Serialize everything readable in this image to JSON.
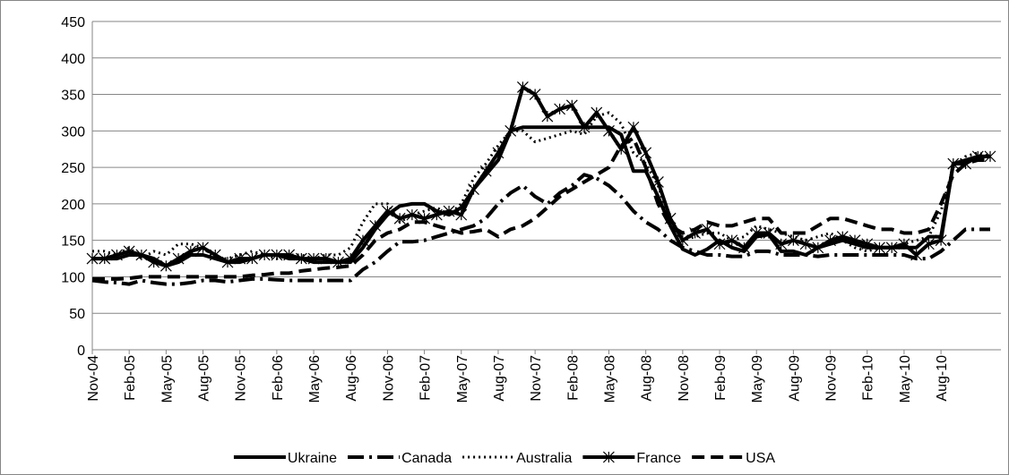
{
  "chart_data": {
    "type": "line",
    "categories": [
      "Nov-04",
      null,
      null,
      "Feb-05",
      null,
      null,
      "May-05",
      null,
      null,
      "Aug-05",
      null,
      null,
      "Nov-05",
      null,
      null,
      "Feb-06",
      null,
      null,
      "May-06",
      null,
      null,
      "Aug-06",
      null,
      null,
      "Nov-06",
      null,
      null,
      "Feb-07",
      null,
      null,
      "May-07",
      null,
      null,
      "Aug-07",
      null,
      null,
      "Nov-07",
      null,
      null,
      "Feb-08",
      null,
      null,
      "May-08",
      null,
      null,
      "Aug-08",
      null,
      null,
      "Nov-08",
      null,
      null,
      "Feb-09",
      null,
      null,
      "May-09",
      null,
      null,
      "Aug-09",
      null,
      null,
      "Nov-09",
      null,
      null,
      "Feb-10",
      null,
      null,
      "May-10",
      null,
      null,
      "Aug-10",
      null,
      null,
      null,
      null
    ],
    "series": [
      {
        "name": "Ukraine",
        "color": "#000000",
        "values": [
          125,
          125,
          125,
          130,
          130,
          125,
          115,
          120,
          130,
          130,
          125,
          120,
          120,
          125,
          130,
          130,
          125,
          125,
          120,
          120,
          120,
          120,
          140,
          165,
          185,
          197,
          200,
          200,
          190,
          185,
          195,
          220,
          240,
          260,
          300,
          305,
          305,
          305,
          305,
          305,
          305,
          305,
          305,
          295,
          245,
          245,
          210,
          170,
          138,
          130,
          138,
          150,
          140,
          135,
          155,
          158,
          135,
          135,
          130,
          140,
          145,
          150,
          145,
          140,
          140,
          140,
          140,
          140,
          155,
          155,
          255,
          260,
          265,
          265
        ]
      },
      {
        "name": "Canada",
        "color": "#000000",
        "values": [
          95,
          93,
          92,
          90,
          95,
          92,
          90,
          90,
          92,
          95,
          95,
          93,
          95,
          97,
          97,
          96,
          95,
          95,
          95,
          95,
          95,
          95,
          110,
          120,
          135,
          148,
          148,
          150,
          155,
          160,
          165,
          170,
          180,
          200,
          215,
          225,
          210,
          200,
          215,
          225,
          240,
          235,
          225,
          210,
          190,
          175,
          165,
          150,
          140,
          135,
          130,
          130,
          128,
          128,
          135,
          135,
          130,
          130,
          130,
          128,
          130,
          130,
          130,
          130,
          130,
          130,
          130,
          125,
          125,
          135,
          150,
          165,
          165,
          165
        ]
      },
      {
        "name": "Australia",
        "color": "#000000",
        "values": [
          135,
          135,
          130,
          140,
          125,
          135,
          130,
          145,
          145,
          140,
          125,
          125,
          130,
          135,
          130,
          125,
          130,
          130,
          125,
          130,
          130,
          140,
          175,
          200,
          200,
          175,
          185,
          190,
          195,
          185,
          200,
          235,
          255,
          280,
          300,
          300,
          285,
          290,
          295,
          300,
          295,
          320,
          325,
          310,
          270,
          255,
          225,
          175,
          150,
          155,
          160,
          160,
          150,
          155,
          170,
          165,
          160,
          155,
          150,
          155,
          160,
          150,
          140,
          135,
          140,
          140,
          145,
          150,
          155,
          190,
          250,
          265,
          270,
          265
        ]
      },
      {
        "name": "France",
        "color": "#000000",
        "values": [
          125,
          125,
          130,
          135,
          130,
          120,
          115,
          125,
          135,
          140,
          130,
          120,
          125,
          125,
          130,
          130,
          130,
          125,
          125,
          125,
          120,
          125,
          150,
          170,
          190,
          180,
          185,
          180,
          185,
          190,
          185,
          220,
          245,
          270,
          300,
          360,
          350,
          320,
          330,
          335,
          305,
          325,
          300,
          275,
          305,
          270,
          230,
          180,
          150,
          160,
          165,
          145,
          150,
          140,
          160,
          160,
          145,
          150,
          145,
          140,
          150,
          155,
          150,
          145,
          140,
          140,
          145,
          130,
          145,
          150,
          255,
          255,
          265,
          265
        ]
      },
      {
        "name": "USA",
        "color": "#000000",
        "values": [
          97,
          97,
          97,
          98,
          100,
          100,
          100,
          100,
          100,
          100,
          100,
          100,
          100,
          102,
          103,
          105,
          105,
          108,
          110,
          112,
          113,
          115,
          130,
          150,
          160,
          165,
          175,
          175,
          170,
          165,
          160,
          162,
          165,
          155,
          165,
          170,
          180,
          195,
          210,
          220,
          230,
          240,
          250,
          280,
          290,
          250,
          200,
          170,
          160,
          165,
          175,
          170,
          170,
          175,
          180,
          180,
          160,
          160,
          160,
          170,
          180,
          180,
          175,
          170,
          165,
          165,
          160,
          160,
          165,
          200,
          240,
          255,
          260,
          260
        ]
      }
    ],
    "ylim": [
      0,
      450
    ],
    "yticks": [
      0,
      50,
      100,
      150,
      200,
      250,
      300,
      350,
      400,
      450
    ],
    "grid": true,
    "legend": "bottom"
  }
}
